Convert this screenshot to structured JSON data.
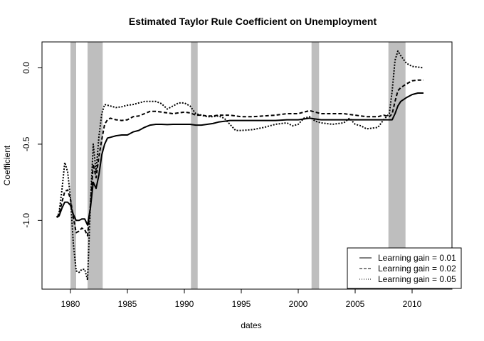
{
  "chart_data": {
    "type": "line",
    "title": "Estimated Taylor Rule Coefficient on Unemployment",
    "xlabel": "dates",
    "ylabel": "Coefficient",
    "xlim": [
      1977.5,
      2013.5
    ],
    "ylim": [
      -1.45,
      0.17
    ],
    "x_ticks": [
      1980,
      1985,
      1990,
      1995,
      2000,
      2005,
      2010
    ],
    "x_tick_labels": [
      "1980",
      "1985",
      "1990",
      "1995",
      "2000",
      "2005",
      "2010"
    ],
    "y_ticks": [
      0,
      -0.5,
      -1
    ],
    "y_tick_labels": [
      "0.0",
      "-0.5",
      "-1.0"
    ],
    "grid": false,
    "legend_position": "bottom-right",
    "recession_color": "#bebebe",
    "recessions": [
      [
        1980.0,
        1980.5
      ],
      [
        1981.5,
        1982.83
      ],
      [
        1990.58,
        1991.17
      ],
      [
        2001.17,
        2001.83
      ],
      [
        2007.92,
        2009.42
      ]
    ],
    "series": [
      {
        "name": "Learning gain = 0.01",
        "dash": "solid",
        "points": [
          [
            1978.8,
            -0.98
          ],
          [
            1979.0,
            -0.97
          ],
          [
            1979.25,
            -0.92
          ],
          [
            1979.5,
            -0.88
          ],
          [
            1979.75,
            -0.88
          ],
          [
            1980.0,
            -0.9
          ],
          [
            1980.25,
            -0.96
          ],
          [
            1980.5,
            -1.0
          ],
          [
            1980.75,
            -1.0
          ],
          [
            1981.0,
            -0.99
          ],
          [
            1981.25,
            -0.99
          ],
          [
            1981.5,
            -1.03
          ],
          [
            1981.75,
            -0.92
          ],
          [
            1982.0,
            -0.75
          ],
          [
            1982.25,
            -0.79
          ],
          [
            1982.5,
            -0.7
          ],
          [
            1982.75,
            -0.57
          ],
          [
            1983.0,
            -0.5
          ],
          [
            1983.25,
            -0.46
          ],
          [
            1983.5,
            -0.455
          ],
          [
            1984.0,
            -0.445
          ],
          [
            1984.5,
            -0.44
          ],
          [
            1985.0,
            -0.44
          ],
          [
            1985.5,
            -0.42
          ],
          [
            1986.0,
            -0.41
          ],
          [
            1986.5,
            -0.39
          ],
          [
            1987.0,
            -0.375
          ],
          [
            1987.5,
            -0.37
          ],
          [
            1988.0,
            -0.37
          ],
          [
            1988.5,
            -0.372
          ],
          [
            1989.0,
            -0.37
          ],
          [
            1989.5,
            -0.37
          ],
          [
            1990.0,
            -0.37
          ],
          [
            1990.5,
            -0.37
          ],
          [
            1991.0,
            -0.375
          ],
          [
            1991.5,
            -0.375
          ],
          [
            1992.0,
            -0.37
          ],
          [
            1992.5,
            -0.365
          ],
          [
            1993.0,
            -0.355
          ],
          [
            1993.5,
            -0.35
          ],
          [
            1994.0,
            -0.345
          ],
          [
            1995.0,
            -0.345
          ],
          [
            1996.0,
            -0.345
          ],
          [
            1997.0,
            -0.345
          ],
          [
            1998.0,
            -0.345
          ],
          [
            1999.0,
            -0.34
          ],
          [
            2000.0,
            -0.34
          ],
          [
            2000.5,
            -0.335
          ],
          [
            2001.0,
            -0.33
          ],
          [
            2001.5,
            -0.335
          ],
          [
            2002.0,
            -0.34
          ],
          [
            2003.0,
            -0.34
          ],
          [
            2004.0,
            -0.34
          ],
          [
            2005.0,
            -0.34
          ],
          [
            2006.0,
            -0.34
          ],
          [
            2007.0,
            -0.34
          ],
          [
            2008.0,
            -0.34
          ],
          [
            2008.25,
            -0.34
          ],
          [
            2008.5,
            -0.3
          ],
          [
            2008.75,
            -0.25
          ],
          [
            2009.0,
            -0.22
          ],
          [
            2009.5,
            -0.195
          ],
          [
            2010.0,
            -0.175
          ],
          [
            2010.5,
            -0.165
          ],
          [
            2011.0,
            -0.165
          ]
        ]
      },
      {
        "name": "Learning gain = 0.02",
        "dash": "dashed",
        "points": [
          [
            1978.8,
            -0.98
          ],
          [
            1979.0,
            -0.96
          ],
          [
            1979.25,
            -0.88
          ],
          [
            1979.5,
            -0.81
          ],
          [
            1979.75,
            -0.8
          ],
          [
            1980.0,
            -0.86
          ],
          [
            1980.25,
            -0.98
          ],
          [
            1980.5,
            -1.08
          ],
          [
            1980.75,
            -1.07
          ],
          [
            1981.0,
            -1.05
          ],
          [
            1981.25,
            -1.06
          ],
          [
            1981.5,
            -1.1
          ],
          [
            1981.75,
            -0.9
          ],
          [
            1982.0,
            -0.63
          ],
          [
            1982.25,
            -0.72
          ],
          [
            1982.5,
            -0.58
          ],
          [
            1982.75,
            -0.47
          ],
          [
            1983.0,
            -0.37
          ],
          [
            1983.25,
            -0.34
          ],
          [
            1983.5,
            -0.33
          ],
          [
            1984.0,
            -0.34
          ],
          [
            1984.5,
            -0.345
          ],
          [
            1985.0,
            -0.34
          ],
          [
            1985.5,
            -0.32
          ],
          [
            1986.0,
            -0.315
          ],
          [
            1986.5,
            -0.3
          ],
          [
            1987.0,
            -0.285
          ],
          [
            1987.5,
            -0.285
          ],
          [
            1988.0,
            -0.29
          ],
          [
            1988.5,
            -0.295
          ],
          [
            1989.0,
            -0.3
          ],
          [
            1989.5,
            -0.295
          ],
          [
            1990.0,
            -0.29
          ],
          [
            1990.5,
            -0.295
          ],
          [
            1991.0,
            -0.31
          ],
          [
            1991.5,
            -0.31
          ],
          [
            1992.0,
            -0.315
          ],
          [
            1992.5,
            -0.315
          ],
          [
            1993.0,
            -0.31
          ],
          [
            1994.0,
            -0.31
          ],
          [
            1994.5,
            -0.315
          ],
          [
            1995.0,
            -0.32
          ],
          [
            1996.0,
            -0.32
          ],
          [
            1997.0,
            -0.315
          ],
          [
            1998.0,
            -0.31
          ],
          [
            1999.0,
            -0.3
          ],
          [
            2000.0,
            -0.3
          ],
          [
            2000.5,
            -0.29
          ],
          [
            2001.0,
            -0.28
          ],
          [
            2001.5,
            -0.29
          ],
          [
            2002.0,
            -0.3
          ],
          [
            2003.0,
            -0.3
          ],
          [
            2004.0,
            -0.3
          ],
          [
            2005.0,
            -0.31
          ],
          [
            2006.0,
            -0.32
          ],
          [
            2007.0,
            -0.32
          ],
          [
            2007.5,
            -0.31
          ],
          [
            2008.0,
            -0.32
          ],
          [
            2008.25,
            -0.3
          ],
          [
            2008.5,
            -0.22
          ],
          [
            2008.75,
            -0.15
          ],
          [
            2009.0,
            -0.13
          ],
          [
            2009.5,
            -0.105
          ],
          [
            2010.0,
            -0.085
          ],
          [
            2010.5,
            -0.08
          ],
          [
            2011.0,
            -0.08
          ]
        ]
      },
      {
        "name": "Learning gain = 0.05",
        "dash": "dotted",
        "points": [
          [
            1978.8,
            -0.98
          ],
          [
            1979.0,
            -0.95
          ],
          [
            1979.25,
            -0.8
          ],
          [
            1979.5,
            -0.62
          ],
          [
            1979.75,
            -0.68
          ],
          [
            1980.0,
            -0.85
          ],
          [
            1980.25,
            -1.15
          ],
          [
            1980.5,
            -1.33
          ],
          [
            1980.75,
            -1.34
          ],
          [
            1981.0,
            -1.32
          ],
          [
            1981.25,
            -1.32
          ],
          [
            1981.5,
            -1.39
          ],
          [
            1981.75,
            -0.9
          ],
          [
            1982.0,
            -0.5
          ],
          [
            1982.25,
            -0.68
          ],
          [
            1982.5,
            -0.45
          ],
          [
            1982.75,
            -0.3
          ],
          [
            1983.0,
            -0.24
          ],
          [
            1983.5,
            -0.25
          ],
          [
            1984.0,
            -0.26
          ],
          [
            1984.5,
            -0.255
          ],
          [
            1985.0,
            -0.245
          ],
          [
            1985.5,
            -0.24
          ],
          [
            1986.0,
            -0.23
          ],
          [
            1986.5,
            -0.22
          ],
          [
            1987.0,
            -0.22
          ],
          [
            1987.5,
            -0.22
          ],
          [
            1988.0,
            -0.235
          ],
          [
            1988.5,
            -0.27
          ],
          [
            1989.0,
            -0.25
          ],
          [
            1989.5,
            -0.23
          ],
          [
            1990.0,
            -0.23
          ],
          [
            1990.5,
            -0.25
          ],
          [
            1991.0,
            -0.3
          ],
          [
            1991.5,
            -0.31
          ],
          [
            1992.0,
            -0.32
          ],
          [
            1992.5,
            -0.32
          ],
          [
            1993.0,
            -0.315
          ],
          [
            1993.5,
            -0.33
          ],
          [
            1994.0,
            -0.37
          ],
          [
            1994.5,
            -0.41
          ],
          [
            1995.0,
            -0.41
          ],
          [
            1996.0,
            -0.405
          ],
          [
            1997.0,
            -0.39
          ],
          [
            1998.0,
            -0.37
          ],
          [
            1999.0,
            -0.36
          ],
          [
            1999.5,
            -0.38
          ],
          [
            2000.0,
            -0.37
          ],
          [
            2000.5,
            -0.33
          ],
          [
            2001.0,
            -0.32
          ],
          [
            2001.5,
            -0.35
          ],
          [
            2002.0,
            -0.36
          ],
          [
            2003.0,
            -0.37
          ],
          [
            2004.0,
            -0.36
          ],
          [
            2004.5,
            -0.33
          ],
          [
            2005.0,
            -0.37
          ],
          [
            2005.5,
            -0.38
          ],
          [
            2006.0,
            -0.4
          ],
          [
            2007.0,
            -0.39
          ],
          [
            2007.5,
            -0.34
          ],
          [
            2008.0,
            -0.3
          ],
          [
            2008.25,
            -0.15
          ],
          [
            2008.5,
            0.05
          ],
          [
            2008.75,
            0.11
          ],
          [
            2009.0,
            0.08
          ],
          [
            2009.5,
            0.03
          ],
          [
            2010.0,
            0.01
          ],
          [
            2010.5,
            0.005
          ],
          [
            2011.0,
            0.0
          ]
        ]
      }
    ]
  }
}
